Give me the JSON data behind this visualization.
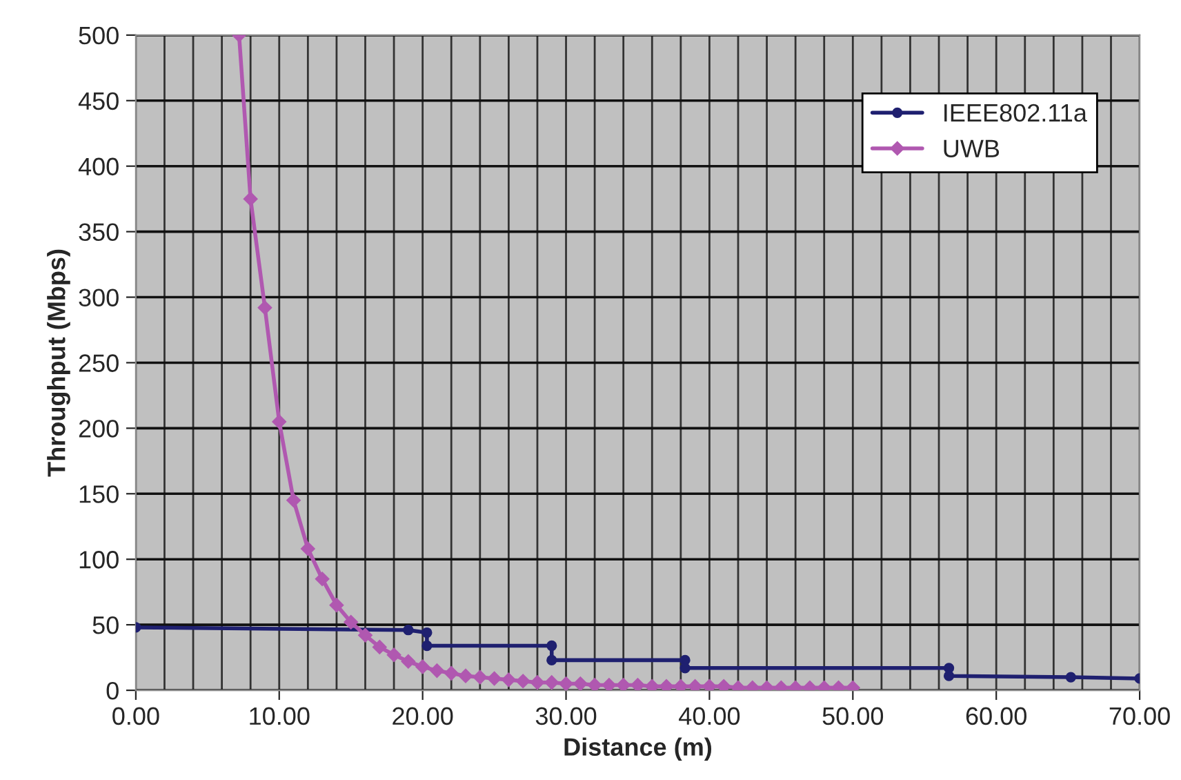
{
  "chart_data": {
    "type": "line",
    "xlabel": "Distance (m)",
    "ylabel": "Throughput (Mbps)",
    "xlim": [
      0,
      70
    ],
    "ylim": [
      0,
      500
    ],
    "xticks": [
      {
        "value": 0,
        "label": "0.00"
      },
      {
        "value": 10,
        "label": "10.00"
      },
      {
        "value": 20,
        "label": "20.00"
      },
      {
        "value": 30,
        "label": "30.00"
      },
      {
        "value": 40,
        "label": "40.00"
      },
      {
        "value": 50,
        "label": "50.00"
      },
      {
        "value": 60,
        "label": "60.00"
      },
      {
        "value": 70,
        "label": "70.00"
      }
    ],
    "yticks": [
      0,
      50,
      100,
      150,
      200,
      250,
      300,
      350,
      400,
      450,
      500
    ],
    "grid": true,
    "legend": "top right",
    "series": [
      {
        "name": "IEEE802.11a",
        "color": "#1f2070",
        "marker": "circle",
        "x": [
          0,
          19,
          20.3,
          20.3,
          29,
          29,
          38.3,
          38.3,
          56.7,
          56.7,
          65.2,
          70
        ],
        "values": [
          48,
          46,
          44,
          34,
          34,
          23,
          23,
          17,
          17,
          11,
          10,
          9
        ]
      },
      {
        "name": "UWB",
        "color": "#b058b0",
        "marker": "diamond",
        "x": [
          7.2,
          8,
          9,
          10,
          11,
          12,
          13,
          14,
          15,
          16,
          17,
          18,
          19,
          20,
          21,
          22,
          23,
          24,
          25,
          26,
          27,
          28,
          29,
          30,
          31,
          32,
          33,
          34,
          35,
          36,
          37,
          38,
          39,
          40,
          41,
          42,
          43,
          44,
          45,
          46,
          47,
          48,
          49,
          50
        ],
        "values": [
          500,
          375,
          292,
          205,
          145,
          108,
          85,
          65,
          52,
          42,
          33,
          27,
          22,
          18,
          15,
          13,
          11,
          10,
          9,
          8,
          7,
          6,
          6,
          5,
          5,
          4,
          4,
          4,
          4,
          3,
          3,
          3,
          3,
          3,
          3,
          2,
          2,
          2,
          2,
          2,
          2,
          2,
          2,
          2
        ]
      }
    ]
  }
}
